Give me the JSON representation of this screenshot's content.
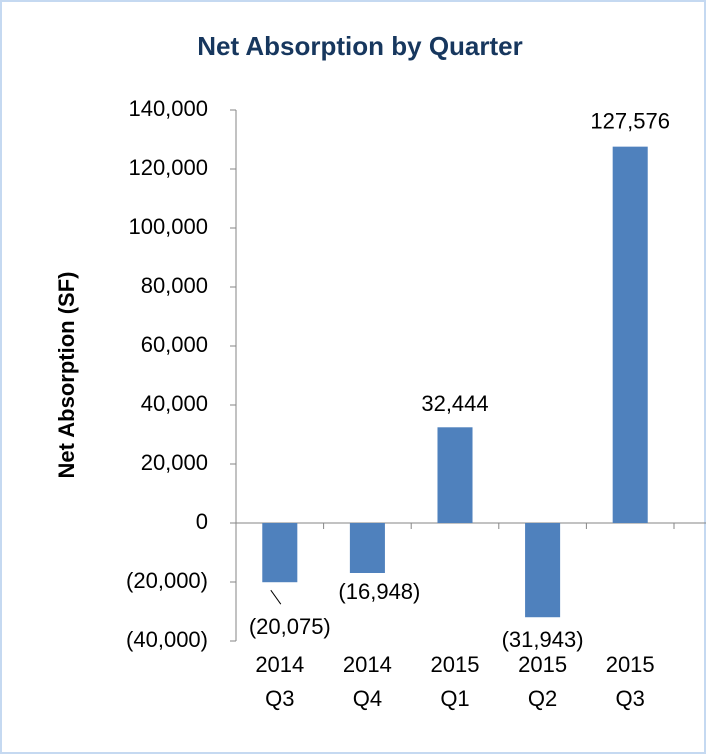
{
  "chart_data": {
    "type": "bar",
    "title": "Net Absorption by Quarter",
    "y_axis_label": "Net Absorption (SF)",
    "categories": [
      "2014 Q3",
      "2014 Q4",
      "2015 Q1",
      "2015 Q2",
      "2015 Q3"
    ],
    "values": [
      -20075,
      -16948,
      32444,
      -31943,
      127576
    ],
    "value_labels": [
      "(20,075)",
      "(16,948)",
      "32,444",
      "(31,943)",
      "127,576"
    ],
    "color": "#4f81bd",
    "ylim": [
      -40000,
      140000
    ],
    "yticks": [
      {
        "value": -40000,
        "label": "(40,000)"
      },
      {
        "value": -20000,
        "label": "(20,000)"
      },
      0,
      {
        "value": 20000,
        "label": "20,000"
      },
      {
        "value": 40000,
        "label": "40,000"
      },
      {
        "value": 60000,
        "label": "60,000"
      },
      {
        "value": 80000,
        "label": "80,000"
      },
      {
        "value": 100000,
        "label": "100,000"
      },
      {
        "value": 120000,
        "label": "120,000"
      },
      {
        "value": 140000,
        "label": "140,000"
      }
    ],
    "grid": false
  }
}
